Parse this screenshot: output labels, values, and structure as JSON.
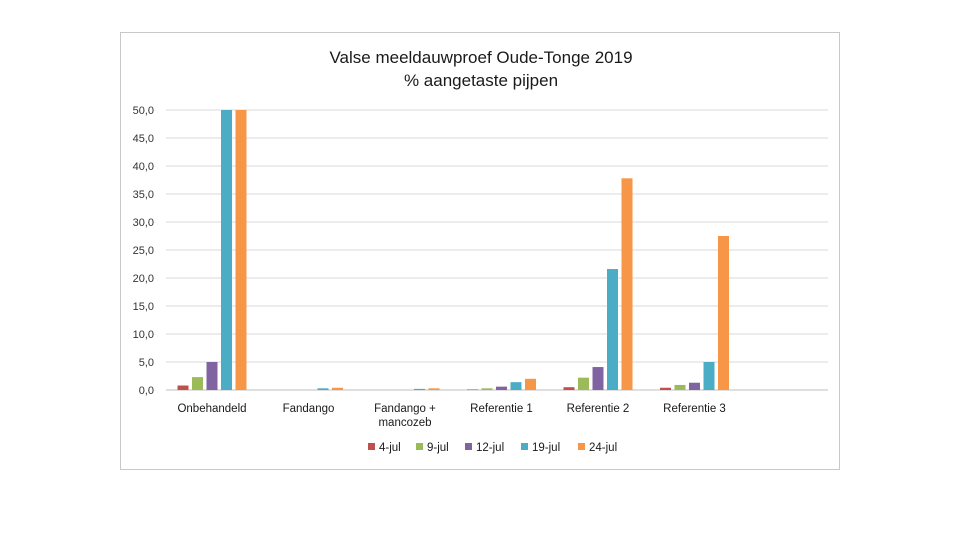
{
  "chart_data": {
    "type": "bar",
    "title": [
      "Valse meeldauwproef Oude-Tonge 2019",
      "% aangetaste pijpen"
    ],
    "xlabel": "",
    "ylabel": "",
    "ylim": [
      0,
      50
    ],
    "yticks": [
      "0,0",
      "5,0",
      "10,0",
      "15,0",
      "20,0",
      "25,0",
      "30,0",
      "35,0",
      "40,0",
      "45,0",
      "50,0"
    ],
    "grid": true,
    "legend": "bottom",
    "categories": [
      [
        "Onbehandeld"
      ],
      [
        "Fandango"
      ],
      [
        "Fandango +",
        "mancozeb"
      ],
      [
        "Referentie 1"
      ],
      [
        "Referentie 2"
      ],
      [
        "Referentie 3"
      ]
    ],
    "series": [
      {
        "name": "4-jul",
        "color": "#c0504d",
        "values": [
          0.8,
          0.0,
          0.0,
          0.1,
          0.5,
          0.4
        ]
      },
      {
        "name": "9-jul",
        "color": "#9bbb59",
        "values": [
          2.3,
          0.0,
          0.0,
          0.3,
          2.2,
          0.9
        ]
      },
      {
        "name": "12-jul",
        "color": "#8064a2",
        "values": [
          5.0,
          0.0,
          0.0,
          0.6,
          4.1,
          1.3
        ]
      },
      {
        "name": "19-jul",
        "color": "#4bacc6",
        "values": [
          50.0,
          0.3,
          0.2,
          1.4,
          21.6,
          5.0
        ]
      },
      {
        "name": "24-jul",
        "color": "#f79646",
        "values": [
          50.0,
          0.4,
          0.3,
          2.0,
          37.8,
          27.5
        ]
      }
    ]
  }
}
